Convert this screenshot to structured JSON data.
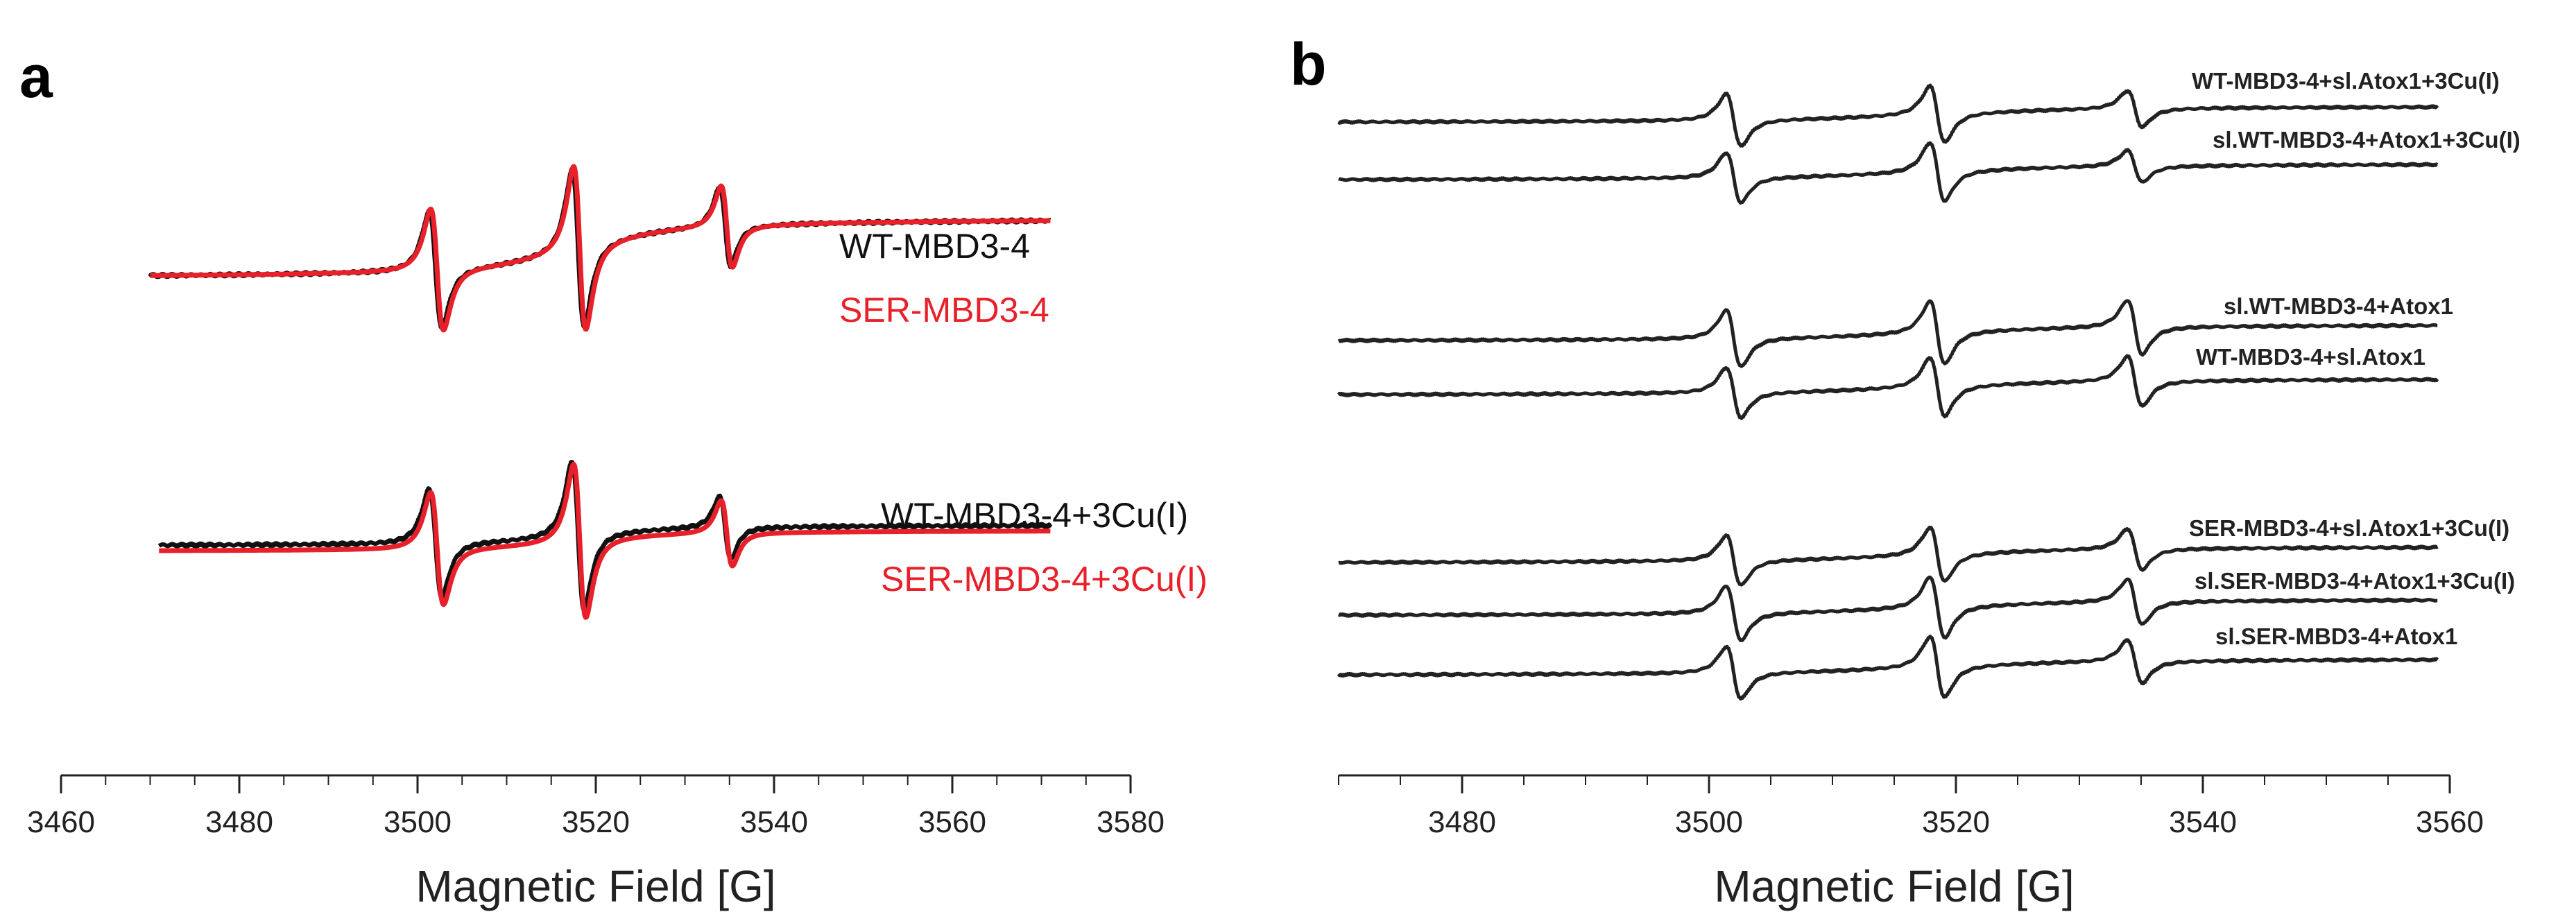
{
  "chart_data": [
    {
      "panel": "a",
      "type": "line",
      "xlabel": "Magnetic Field [G]",
      "ylabel": "",
      "xlim": [
        3460,
        3580
      ],
      "xticks": [
        3460,
        3480,
        3500,
        3520,
        3540,
        3560,
        3580
      ],
      "grid": false,
      "colors": {
        "wt": "#111111",
        "ser": "#e8202a"
      },
      "peaks_G": [
        3502,
        3518,
        3534.5
      ],
      "series": [
        {
          "name": "WT-MBD3-4",
          "color": "#111111",
          "x_start": 3470,
          "x_end": 3571,
          "stack": 0
        },
        {
          "name": "SER-MBD3-4",
          "color": "#e8202a",
          "x_start": 3470,
          "x_end": 3571,
          "stack": 0
        },
        {
          "name": "WT-MBD3-4+3Cu(I)",
          "color": "#111111",
          "x_start": 3471,
          "x_end": 3571,
          "stack": 1
        },
        {
          "name": "SER-MBD3-4+3Cu(I)",
          "color": "#e8202a",
          "x_start": 3471,
          "x_end": 3571,
          "stack": 1
        }
      ]
    },
    {
      "panel": "b",
      "type": "line",
      "xlabel": "Magnetic Field [G]",
      "ylabel": "",
      "xlim": [
        3470,
        3560
      ],
      "xticks": [
        3480,
        3500,
        3520,
        3540,
        3560
      ],
      "grid": false,
      "peaks_G": [
        3502,
        3518.5,
        3534.5
      ],
      "series": [
        {
          "name": "WT-MBD3-4+sl.Atox1+3Cu(I)",
          "color": "#222222",
          "stack": 0
        },
        {
          "name": "sl.WT-MBD3-4+Atox1+3Cu(I)",
          "color": "#222222",
          "stack": 1
        },
        {
          "name": "sl.WT-MBD3-4+Atox1",
          "color": "#222222",
          "stack": 2
        },
        {
          "name": "WT-MBD3-4+sl.Atox1",
          "color": "#222222",
          "stack": 3
        },
        {
          "name": "SER-MBD3-4+sl.Atox1+3Cu(I)",
          "color": "#222222",
          "stack": 4
        },
        {
          "name": "sl.SER-MBD3-4+Atox1+3Cu(I)",
          "color": "#222222",
          "stack": 5
        },
        {
          "name": "sl.SER-MBD3-4+Atox1",
          "color": "#222222",
          "stack": 6
        }
      ]
    }
  ],
  "panels": {
    "a": "a",
    "b": "b"
  }
}
